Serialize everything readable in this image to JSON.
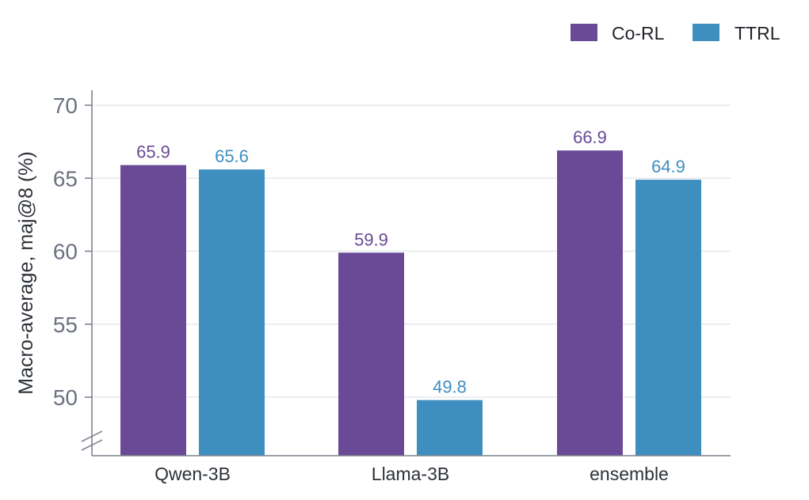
{
  "chart_data": {
    "type": "bar",
    "categories": [
      "Qwen-3B",
      "Llama-3B",
      "ensemble"
    ],
    "series": [
      {
        "name": "Co-RL",
        "values": [
          65.9,
          59.9,
          66.9
        ],
        "color": "#6a4a96"
      },
      {
        "name": "TTRL",
        "values": [
          65.6,
          49.8,
          64.9
        ],
        "color": "#3e8fc0"
      }
    ],
    "value_labels": [
      [
        "65.9",
        "59.9",
        "66.9"
      ],
      [
        "65.6",
        "49.8",
        "64.9"
      ]
    ],
    "ylabel": "Macro-average, maj@8 (%)",
    "xlabel": "",
    "ylim": [
      46,
      71
    ],
    "yticks": [
      50,
      55,
      60,
      65,
      70
    ],
    "ytick_labels": [
      "50",
      "55",
      "60",
      "65",
      "70"
    ],
    "axis_break": true,
    "grid": "horizontal",
    "legend_position": "top-right"
  }
}
